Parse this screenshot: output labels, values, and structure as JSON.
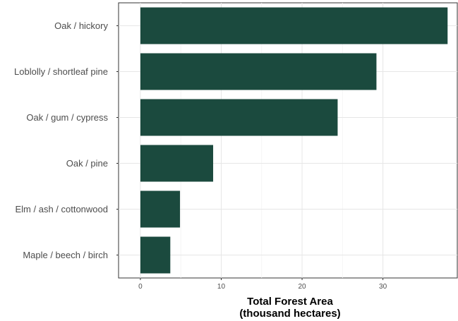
{
  "chart_data": {
    "type": "bar",
    "orientation": "horizontal",
    "categories": [
      "Oak / hickory",
      "Loblolly / shortleaf pine",
      "Oak / gum / cypress",
      "Oak / pine",
      "Elm / ash / cottonwood",
      "Maple / beech / birch"
    ],
    "values": [
      38.0,
      29.2,
      24.4,
      9.0,
      4.9,
      3.7
    ],
    "xlabel": "Total Forest Area",
    "xlabel_line2": "(thousand hectares)",
    "ylabel": "",
    "title": "",
    "xlim": [
      -2.7,
      39.2
    ],
    "xticks": [
      0,
      10,
      20,
      30
    ],
    "grid": true,
    "bar_color": "#1b4a3e"
  }
}
